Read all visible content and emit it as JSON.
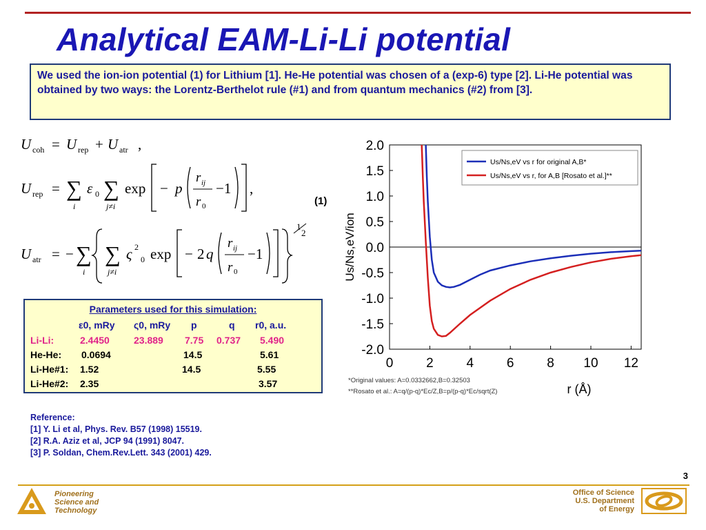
{
  "title": "Analytical EAM-Li-Li potential",
  "intro_text": "We used the ion-ion potential (1) for Lithium [1]. He-He potential was chosen of a (exp-6) type [2]. Li-He potential was obtained by two ways: the Lorentz-Berthelot rule (#1) and from quantum mechanics (#2) from [3].",
  "equation_label": "(1)",
  "params": {
    "title": "Parameters used for this simulation:",
    "headers": [
      "ε0, mRy",
      "ς0, mRy",
      "p",
      "q",
      "r0, a.u."
    ],
    "rows": [
      {
        "label": "Li-Li:",
        "eps0": "2.4450",
        "zeta0": "23.889",
        "p": "7.75",
        "q": "0.737",
        "r0": "5.490"
      },
      {
        "label": "He-He:",
        "eps0": "0.0694",
        "zeta0": "",
        "p": "14.5",
        "q": "",
        "r0": "5.61"
      },
      {
        "label": "Li-He#1:",
        "eps0": "1.52",
        "zeta0": "",
        "p": "14.5",
        "q": "",
        "r0": "5.55"
      },
      {
        "label": "Li-He#2:",
        "eps0": "2.35",
        "zeta0": "",
        "p": "",
        "q": "",
        "r0": "3.57"
      }
    ]
  },
  "references": {
    "heading": "Reference:",
    "items": [
      "[1] Y. Li et al, Phys. Rev. B57 (1998) 15519.",
      "[2] R.A. Aziz et al, JCP 94 (1991) 8047.",
      "[3] P. Soldan, Chem.Rev.Lett. 343 (2001) 429."
    ]
  },
  "page_number": "3",
  "footer": {
    "left_lines": [
      "Pioneering",
      "Science and",
      "Technology"
    ],
    "right_lines": [
      "Office of Science",
      "U.S. Department",
      "of Energy"
    ]
  },
  "colors": {
    "title": "#1a17b4",
    "box_bg": "#ffffcc",
    "rule": "#b22222",
    "footer": "#a0701c",
    "series_blue": "#1c2fb8",
    "series_red": "#d42020"
  },
  "chart_data": {
    "type": "line",
    "xlabel": "r (Å)",
    "ylabel": "Us/Ns,eV/ion",
    "xlim": [
      0,
      12.5
    ],
    "ylim": [
      -2.0,
      2.0
    ],
    "xticks": [
      0,
      2,
      4,
      6,
      8,
      10,
      12
    ],
    "yticks": [
      2.0,
      1.5,
      1.0,
      0.5,
      0.0,
      -0.5,
      -1.0,
      -1.5,
      -2.0
    ],
    "ytick_labels": [
      "2.0",
      "1.5",
      "1.0",
      "0.5",
      "0.0",
      "-0.5",
      "-1.0",
      "-1.5",
      "-2.0"
    ],
    "legend_position": "top-right",
    "notes": [
      "*Original values: A=0.0332662,B=0.32503",
      "**Rosato et al.: A=q/(p-q)*Ec/Z,B=p/(p-q)*Ec/sqrt(Z)"
    ],
    "series": [
      {
        "name": "Us/Ns,eV vs r for original A,B*",
        "color": "#1c2fb8",
        "x": [
          1.8,
          1.85,
          1.9,
          2.0,
          2.1,
          2.2,
          2.4,
          2.6,
          2.8,
          3.0,
          3.2,
          3.5,
          4.0,
          4.5,
          5.0,
          6.0,
          7.0,
          8.0,
          9.0,
          10.0,
          11.0,
          12.0,
          12.5
        ],
        "y": [
          2.0,
          1.4,
          0.9,
          0.2,
          -0.25,
          -0.5,
          -0.68,
          -0.75,
          -0.78,
          -0.79,
          -0.78,
          -0.74,
          -0.64,
          -0.54,
          -0.46,
          -0.36,
          -0.28,
          -0.22,
          -0.17,
          -0.13,
          -0.1,
          -0.08,
          -0.07
        ]
      },
      {
        "name": "Us/Ns,eV vs r, for A,B [Rosato et al.]**",
        "color": "#d42020",
        "x": [
          1.6,
          1.65,
          1.7,
          1.8,
          1.9,
          2.0,
          2.1,
          2.2,
          2.4,
          2.6,
          2.8,
          3.0,
          3.5,
          4.0,
          5.0,
          6.0,
          7.0,
          8.0,
          9.0,
          10.0,
          11.0,
          12.0,
          12.5
        ],
        "y": [
          2.0,
          1.4,
          0.9,
          0.1,
          -0.6,
          -1.15,
          -1.45,
          -1.6,
          -1.72,
          -1.75,
          -1.74,
          -1.68,
          -1.5,
          -1.33,
          -1.05,
          -0.82,
          -0.64,
          -0.5,
          -0.39,
          -0.3,
          -0.23,
          -0.18,
          -0.16
        ]
      }
    ]
  }
}
